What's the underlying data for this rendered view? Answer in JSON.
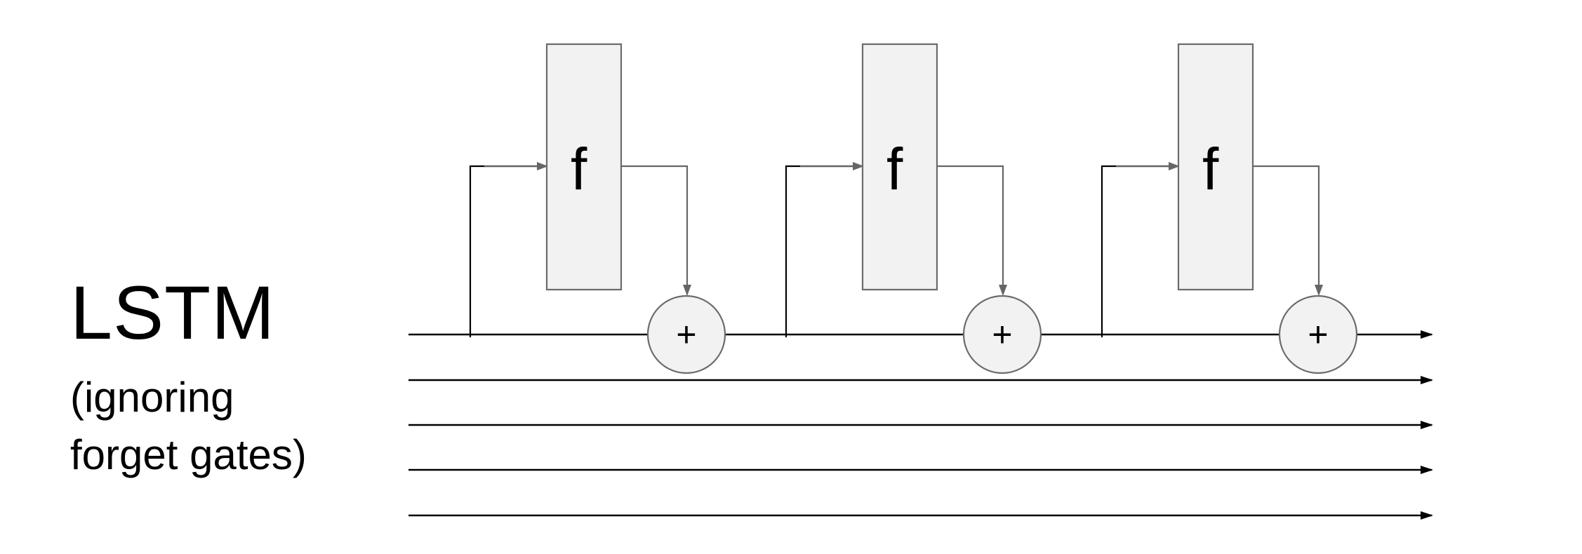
{
  "title": "LSTM",
  "subtitle": {
    "line1": "(ignoring",
    "line2": "forget gates)"
  },
  "cells": [
    {
      "label": "f",
      "op": "+"
    },
    {
      "label": "f",
      "op": "+"
    },
    {
      "label": "f",
      "op": "+"
    }
  ],
  "arrow_lanes": 5,
  "colors": {
    "line": "#000000",
    "box_fill": "#f2f2f2",
    "box_stroke": "#6b6b6b",
    "arrow_gray": "#666666"
  }
}
